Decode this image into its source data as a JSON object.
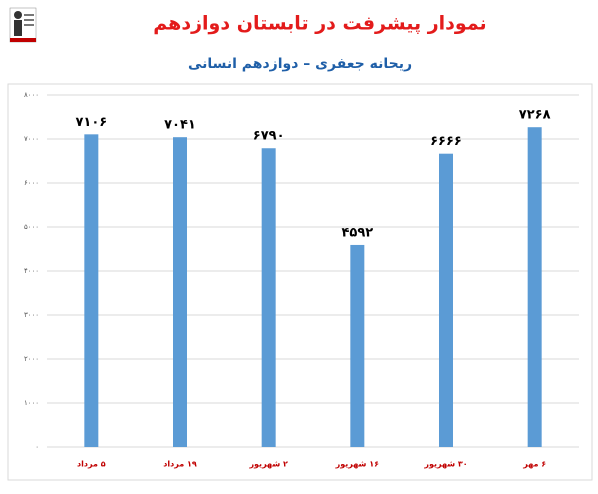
{
  "chart_data": {
    "type": "bar",
    "title": "نمودار پیشرفت در تابستان دوازدهم",
    "subtitle": "ریحانه جعفری – دوازدهم انسانی",
    "categories": [
      "۵ مرداد",
      "۱۹ مرداد",
      "۲ شهریور",
      "۱۶ شهریور",
      "۳۰ شهریور",
      "۶ مهر"
    ],
    "values": [
      7106,
      7041,
      6790,
      4592,
      6666,
      7268
    ],
    "value_labels": [
      "۷۱۰۶",
      "۷۰۴۱",
      "۶۷۹۰",
      "۴۵۹۲",
      "۶۶۶۶",
      "۷۲۶۸"
    ],
    "color": "#5b9bd5",
    "ylim": [
      0,
      8000
    ],
    "yticks": [
      {
        "value": 0,
        "label": "۰"
      },
      {
        "value": 1000,
        "label": "۱۰۰۰"
      },
      {
        "value": 2000,
        "label": "۲۰۰۰"
      },
      {
        "value": 3000,
        "label": "۳۰۰۰"
      },
      {
        "value": 4000,
        "label": "۴۰۰۰"
      },
      {
        "value": 5000,
        "label": "۵۰۰۰"
      },
      {
        "value": 6000,
        "label": "۶۰۰۰"
      },
      {
        "value": 7000,
        "label": "۷۰۰۰"
      },
      {
        "value": 8000,
        "label": "۸۰۰۰"
      }
    ],
    "grid": true
  }
}
